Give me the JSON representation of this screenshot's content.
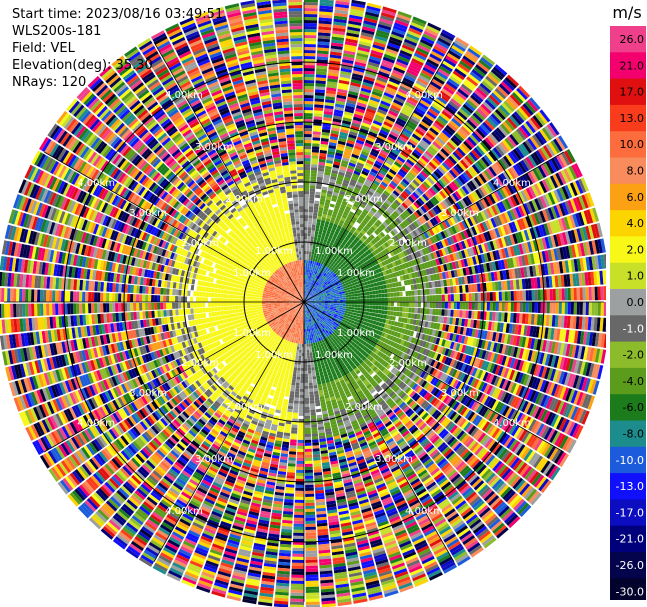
{
  "info": {
    "start_time": "Start time: 2023/08/16 03:49:51",
    "instrument": "WLS200s-181",
    "field": "Field: VEL",
    "elevation": "Elevation(deg): 35.30",
    "nrays": "NRays: 120"
  },
  "colorbar": {
    "unit": "m/s",
    "ticks": [
      "26.0",
      "21.0",
      "17.0",
      "13.0",
      "10.0",
      "8.0",
      "6.0",
      "4.0",
      "2.0",
      "1.0",
      "0.0",
      "-1.0",
      "-2.0",
      "-4.0",
      "-6.0",
      "-8.0",
      "-10.0",
      "-13.0",
      "-17.0",
      "-21.0",
      "-26.0",
      "-30.0"
    ],
    "colors": [
      "#f0408c",
      "#f4006e",
      "#e01010",
      "#f83c1c",
      "#fc6c3c",
      "#f88c5c",
      "#fca014",
      "#fcd400",
      "#f8f818",
      "#c8e028",
      "#9ca0a0",
      "#686868",
      "#8cbc2c",
      "#5c9c1c",
      "#1c7c1c",
      "#1c8c8c",
      "#1c5cdc",
      "#1010fc",
      "#0c0cc0",
      "#00007c",
      "#04044c",
      "#02022c"
    ]
  },
  "chart_data": {
    "type": "ppi_polar",
    "title": "",
    "field": "VEL",
    "units": "m/s",
    "n_rays": 120,
    "elevation_deg": 35.3,
    "range_ring_labels": [
      "1.00km",
      "2.00km",
      "3.00km",
      "4.00km"
    ],
    "color_scale_ticks": [
      26.0,
      21.0,
      17.0,
      13.0,
      10.0,
      8.0,
      6.0,
      4.0,
      2.0,
      1.0,
      0.0,
      -1.0,
      -2.0,
      -4.0,
      -6.0,
      -8.0,
      -10.0,
      -13.0,
      -17.0,
      -21.0,
      -26.0,
      -30.0
    ],
    "velocity_regions": [
      {
        "sector": "west",
        "range_km": [
          0.0,
          0.6
        ],
        "velocity_ms": 8.0
      },
      {
        "sector": "west",
        "range_km": [
          0.6,
          1.7
        ],
        "velocity_ms": 2.0
      },
      {
        "sector": "south",
        "range_km": [
          0.5,
          1.8
        ],
        "velocity_ms": 2.0
      },
      {
        "sector": "east",
        "range_km": [
          0.0,
          0.6
        ],
        "velocity_ms": -8.0
      },
      {
        "sector": "east",
        "range_km": [
          0.6,
          1.6
        ],
        "velocity_ms": -6.0
      },
      {
        "sector": "north",
        "range_km": [
          1.0,
          2.0
        ],
        "velocity_ms": -2.0
      },
      {
        "sector": "all",
        "range_km": [
          2.3,
          5.1
        ],
        "velocity_ms": "noise"
      }
    ]
  }
}
